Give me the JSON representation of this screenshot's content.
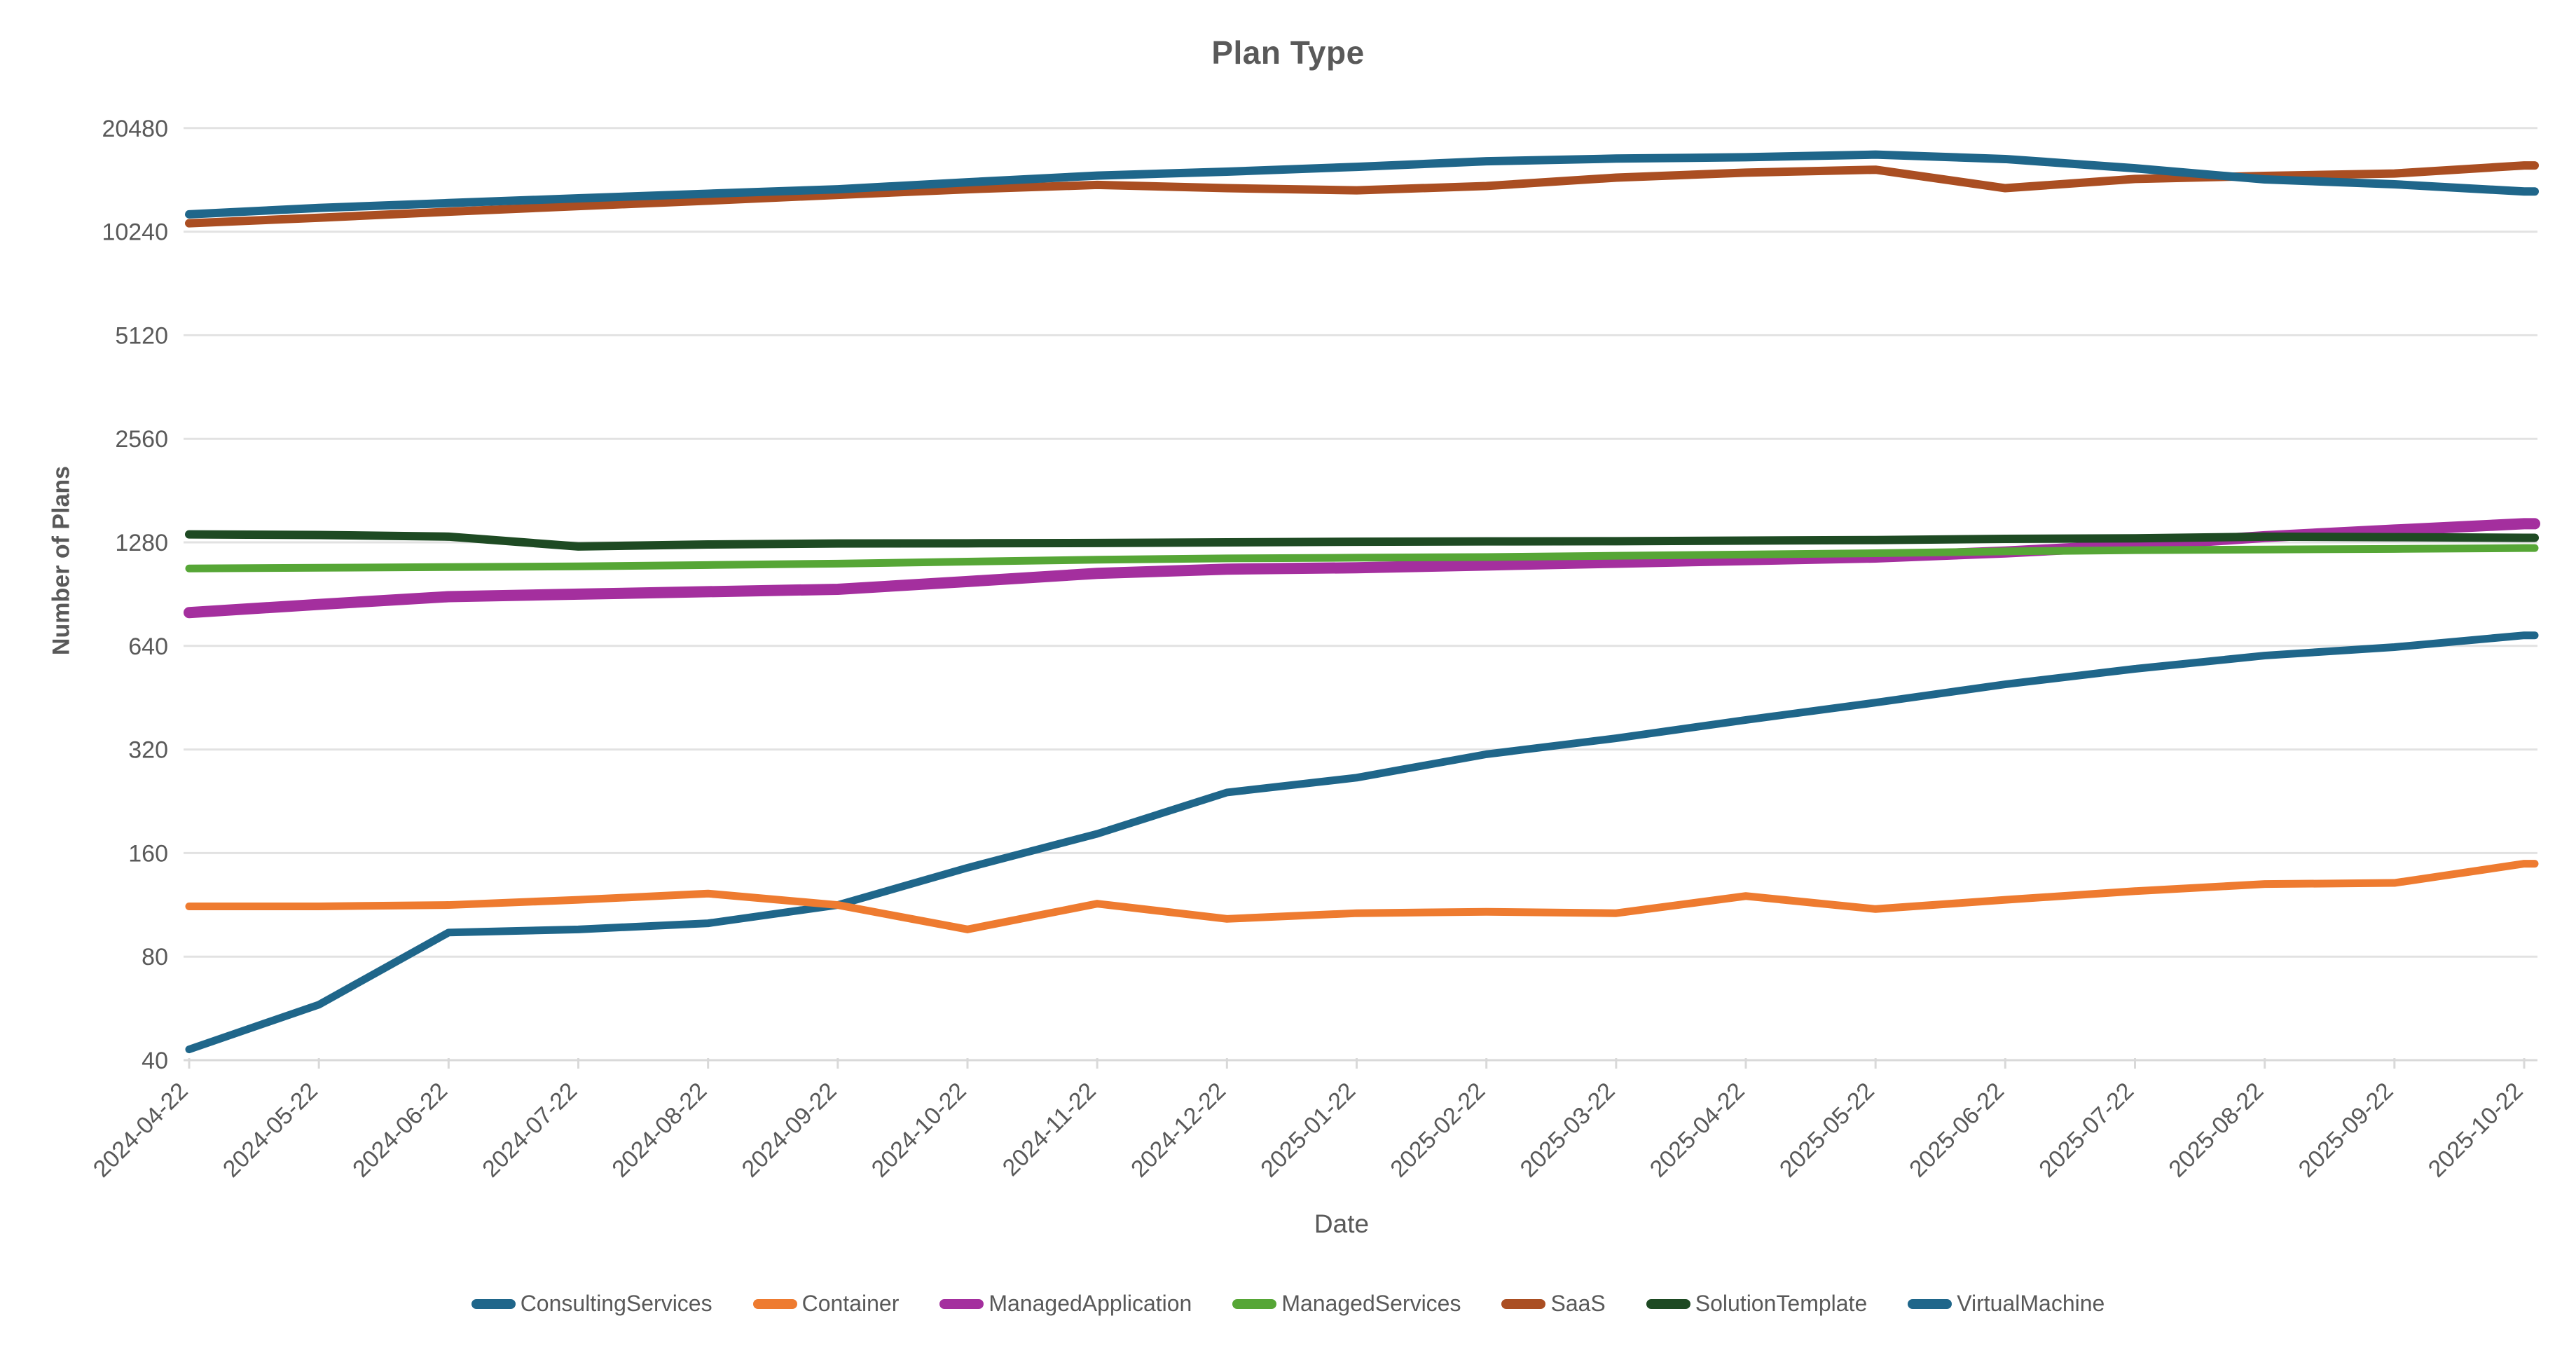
{
  "page": {
    "background": "#ffffff",
    "text_color": "#595959"
  },
  "chart_data": {
    "type": "line",
    "title": "Plan Type",
    "xlabel": "Date",
    "ylabel": "Number of Plans",
    "x_scale": "categorical-monthly",
    "y_scale": "log2",
    "ylim": [
      40,
      27000
    ],
    "grid": "horizontal",
    "grid_color": "#e2e2e2",
    "axis_color": "#d9d9d9",
    "legend_position": "bottom",
    "y_ticks": [
      40,
      80,
      160,
      320,
      640,
      1280,
      2560,
      5120,
      10240,
      20480
    ],
    "x": [
      "2024-04-22",
      "2024-05-22",
      "2024-06-22",
      "2024-07-22",
      "2024-08-22",
      "2024-09-22",
      "2024-10-22",
      "2024-11-22",
      "2024-12-22",
      "2025-01-22",
      "2025-02-22",
      "2025-03-22",
      "2025-04-22",
      "2025-05-22",
      "2025-06-22",
      "2025-07-22",
      "2025-08-22",
      "2025-09-22",
      "2025-10-22"
    ],
    "series": [
      {
        "name": "ConsultingServices",
        "color": "#1f668a",
        "width": 11,
        "values": [
          43,
          58,
          94,
          96,
          100,
          113,
          145,
          182,
          240,
          265,
          310,
          345,
          390,
          438,
          495,
          549,
          600,
          635,
          687
        ]
      },
      {
        "name": "Container",
        "color": "#ee7b30",
        "width": 11,
        "values": [
          112,
          112,
          113,
          117,
          122,
          113,
          96,
          114,
          103,
          107,
          108,
          107,
          120,
          110,
          117,
          124,
          130,
          131,
          149
        ]
      },
      {
        "name": "ManagedApplication",
        "color": "#a42f9e",
        "width": 16,
        "values": [
          800,
          845,
          890,
          905,
          920,
          935,
          985,
          1040,
          1070,
          1080,
          1100,
          1120,
          1140,
          1160,
          1200,
          1255,
          1330,
          1390,
          1450
        ]
      },
      {
        "name": "ManagedServices",
        "color": "#56a636",
        "width": 11,
        "values": [
          1075,
          1080,
          1085,
          1090,
          1100,
          1110,
          1125,
          1140,
          1150,
          1155,
          1160,
          1170,
          1180,
          1190,
          1205,
          1215,
          1220,
          1225,
          1232
        ]
      },
      {
        "name": "SaaS",
        "color": "#aa4e22",
        "width": 12,
        "values": [
          10830,
          11240,
          11700,
          12150,
          12600,
          13100,
          13600,
          14000,
          13700,
          13500,
          13900,
          14700,
          15200,
          15500,
          13700,
          14570,
          14870,
          15110,
          15950
        ]
      },
      {
        "name": "SolutionTemplate",
        "color": "#1e4a23",
        "width": 12,
        "values": [
          1350,
          1345,
          1330,
          1245,
          1262,
          1270,
          1272,
          1275,
          1280,
          1285,
          1288,
          1290,
          1295,
          1300,
          1310,
          1315,
          1330,
          1325,
          1320
        ]
      },
      {
        "name": "VirtualMachine",
        "color": "#1f668a",
        "width": 12,
        "values": [
          11500,
          12000,
          12400,
          12800,
          13200,
          13600,
          14250,
          14900,
          15300,
          15800,
          16400,
          16700,
          16850,
          17150,
          16650,
          15650,
          14530,
          14060,
          13400
        ]
      }
    ]
  }
}
